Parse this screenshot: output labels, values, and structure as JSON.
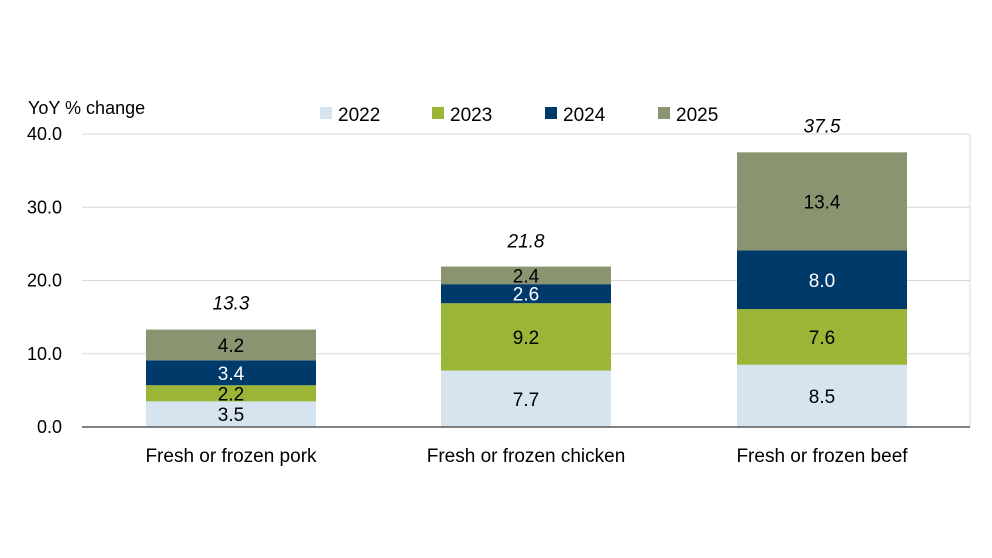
{
  "chart_data": {
    "type": "bar",
    "stacked": true,
    "title": "",
    "xlabel": "",
    "ylabel": "YoY % change",
    "ylim": [
      0,
      40
    ],
    "yticks": [
      "0.0",
      "10.0",
      "20.0",
      "30.0",
      "40.0"
    ],
    "grid": true,
    "legend_position": "top",
    "categories": [
      "Fresh or frozen pork",
      "Fresh or frozen chicken",
      "Fresh or frozen beef"
    ],
    "series": [
      {
        "name": "2022",
        "color": "#d6e4f0",
        "label_color": "#000000",
        "values": [
          3.5,
          7.7,
          8.5
        ],
        "labels": [
          "3.5",
          "7.7",
          "8.5"
        ]
      },
      {
        "name": "2023",
        "color": "#9bb536",
        "label_color": "#000000",
        "values": [
          2.2,
          9.2,
          7.6
        ],
        "labels": [
          "2.2",
          "9.2",
          "7.6"
        ]
      },
      {
        "name": "2024",
        "color": "#003a6b",
        "label_color": "#ffffff",
        "values": [
          3.4,
          2.6,
          8.0
        ],
        "labels": [
          "3.4",
          "2.6",
          "8.0"
        ]
      },
      {
        "name": "2025",
        "color": "#8a9470",
        "label_color": "#000000",
        "values": [
          4.2,
          2.4,
          13.4
        ],
        "labels": [
          "4.2",
          "2.4",
          "13.4"
        ]
      }
    ],
    "totals": [
      13.3,
      21.8,
      37.5
    ],
    "total_labels": [
      "13.3",
      "21.8",
      "37.5"
    ]
  }
}
